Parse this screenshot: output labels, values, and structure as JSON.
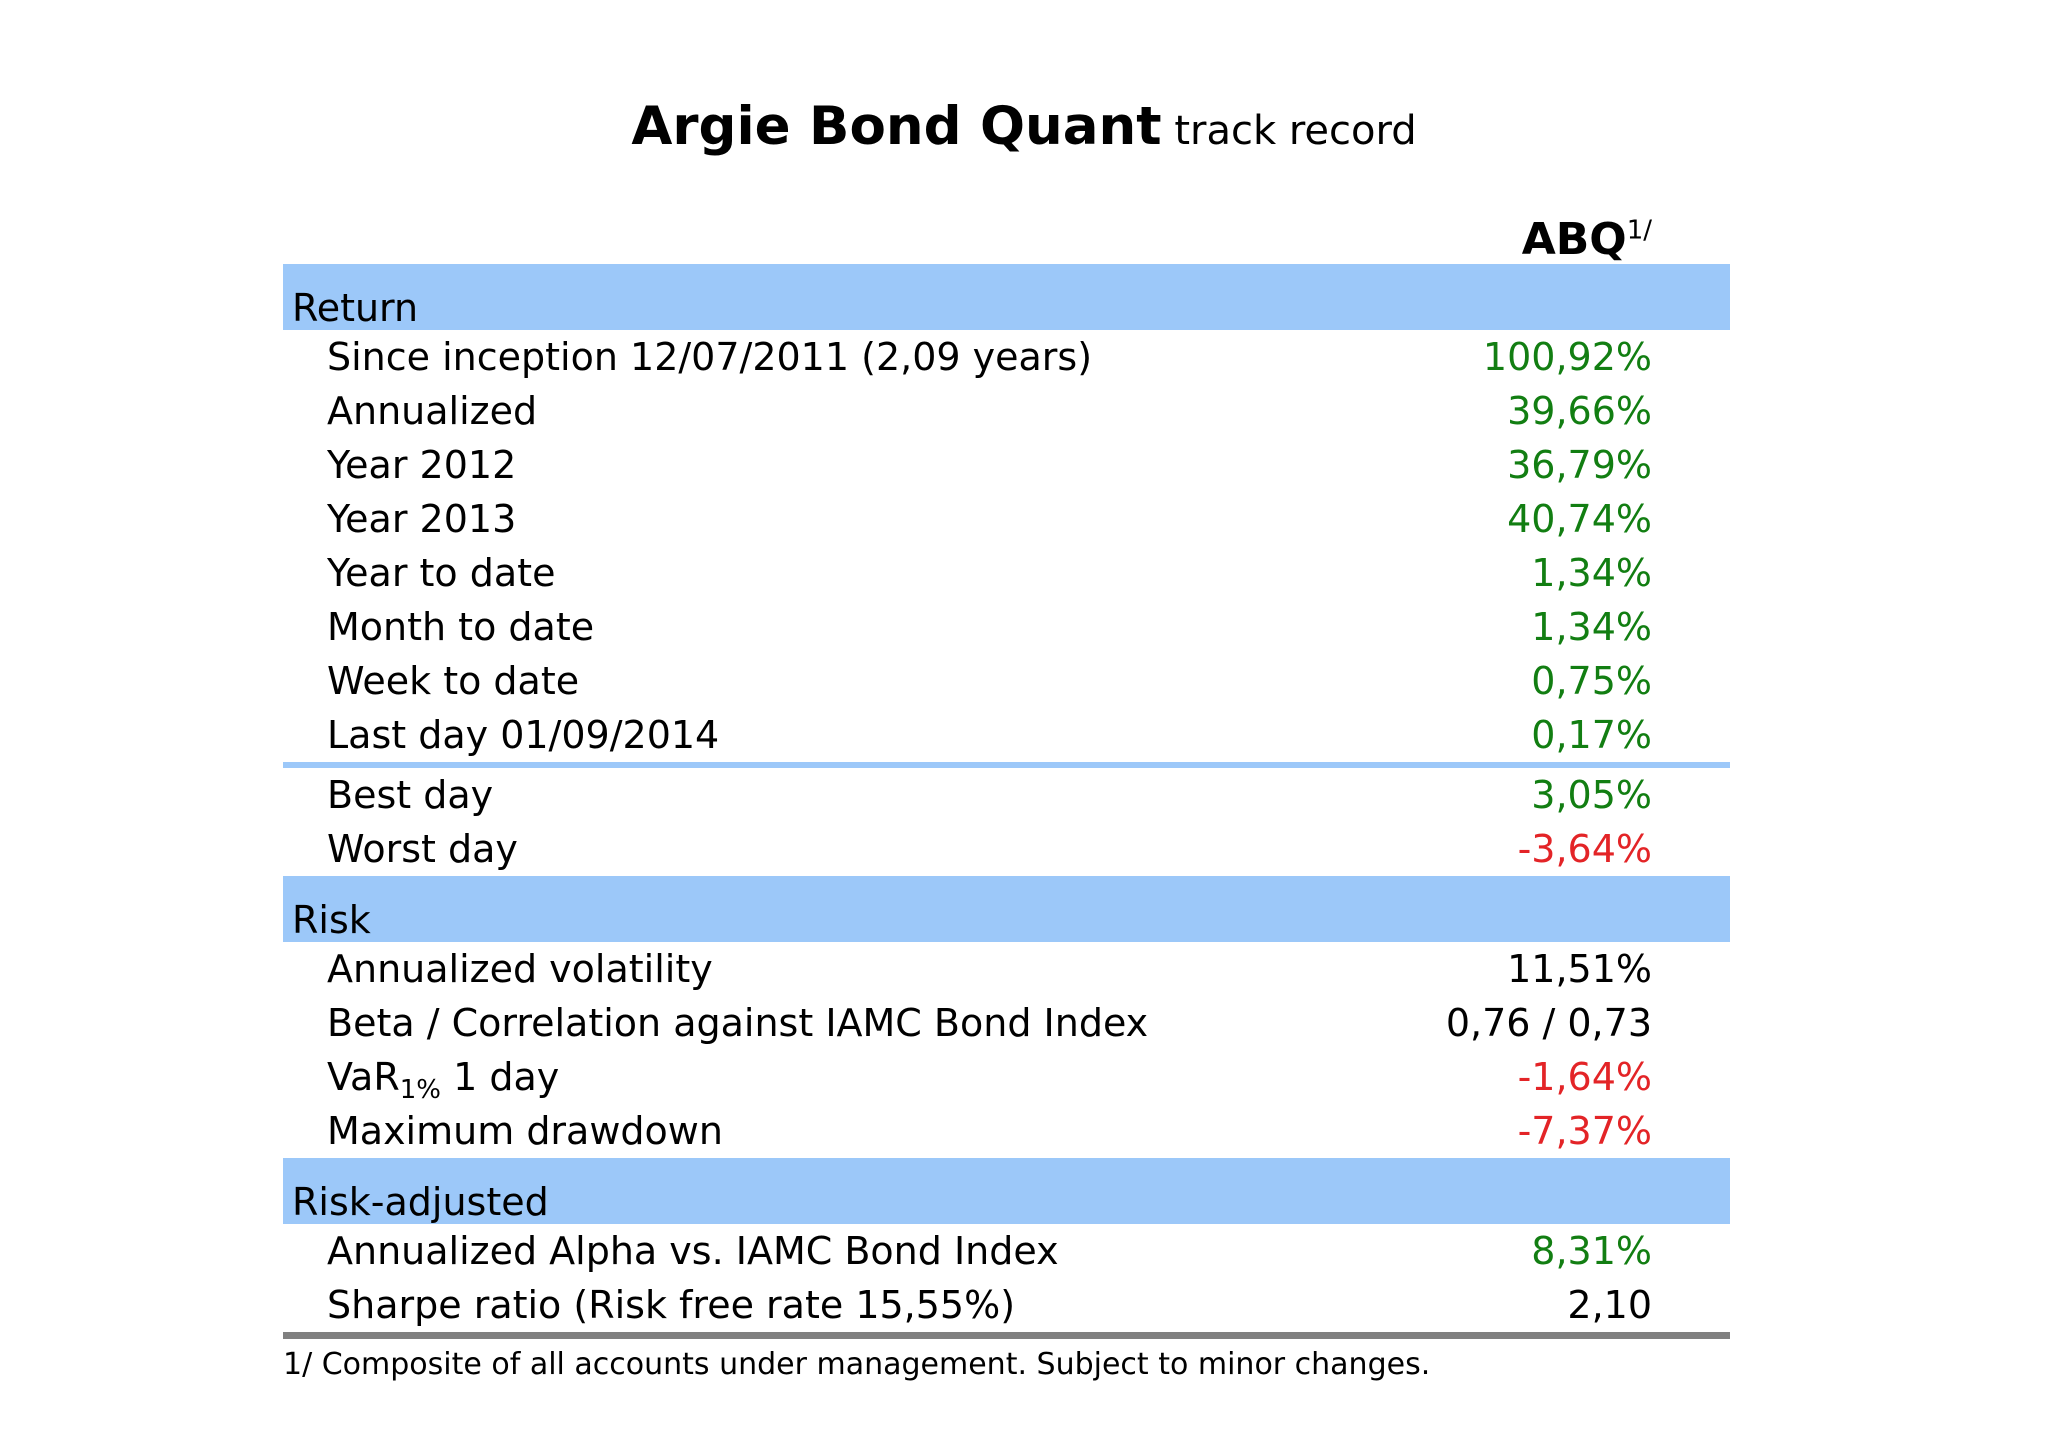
{
  "title": {
    "main": "Argie Bond Quant",
    "suffix": " track record"
  },
  "column_header": {
    "label": "ABQ",
    "superscript": "1/"
  },
  "sections": [
    {
      "name": "Return",
      "rows": [
        {
          "label": "Since inception 12/07/2011 (2,09 years)",
          "value": "100,92%",
          "value_color": "green"
        },
        {
          "label": "Annualized",
          "value": "39,66%",
          "value_color": "green"
        },
        {
          "label": "Year 2012",
          "value": "36,79%",
          "value_color": "green"
        },
        {
          "label": "Year 2013",
          "value": "40,74%",
          "value_color": "green"
        },
        {
          "label": "Year to date",
          "value": "1,34%",
          "value_color": "green"
        },
        {
          "label": "Month to date",
          "value": "1,34%",
          "value_color": "green"
        },
        {
          "label": "Week to date",
          "value": "0,75%",
          "value_color": "green"
        },
        {
          "label": "Last day 01/09/2014",
          "value": "0,17%",
          "value_color": "green"
        },
        {
          "label": "Best day",
          "value": "3,05%",
          "value_color": "green",
          "separator_before": true
        },
        {
          "label": "Worst day",
          "value": "-3,64%",
          "value_color": "red"
        }
      ]
    },
    {
      "name": "Risk",
      "rows": [
        {
          "label": "Annualized volatility",
          "value": "11,51%",
          "value_color": "black"
        },
        {
          "label": "Beta / Correlation against IAMC Bond Index",
          "value": "0,76 / 0,73",
          "value_color": "black"
        },
        {
          "label_parts": {
            "pre": "VaR",
            "sub": "1%",
            "post": " 1 day"
          },
          "value": "-1,64%",
          "value_color": "red"
        },
        {
          "label": "Maximum drawdown",
          "value": "-7,37%",
          "value_color": "red"
        }
      ]
    },
    {
      "name": "Risk-adjusted",
      "rows": [
        {
          "label": "Annualized Alpha vs. IAMC Bond Index",
          "value": "8,31%",
          "value_color": "green"
        },
        {
          "label": "Sharpe ratio (Risk free rate 15,55%)",
          "value": "2,10",
          "value_color": "black"
        }
      ]
    }
  ],
  "footnote": "1/ Composite of all accounts under management. Subject to minor changes.",
  "colors": {
    "band_blue": "#9CC8F9",
    "positive_green": "#127E12",
    "negative_red": "#E32427",
    "rule_gray": "#808080",
    "text_black": "#000000"
  }
}
